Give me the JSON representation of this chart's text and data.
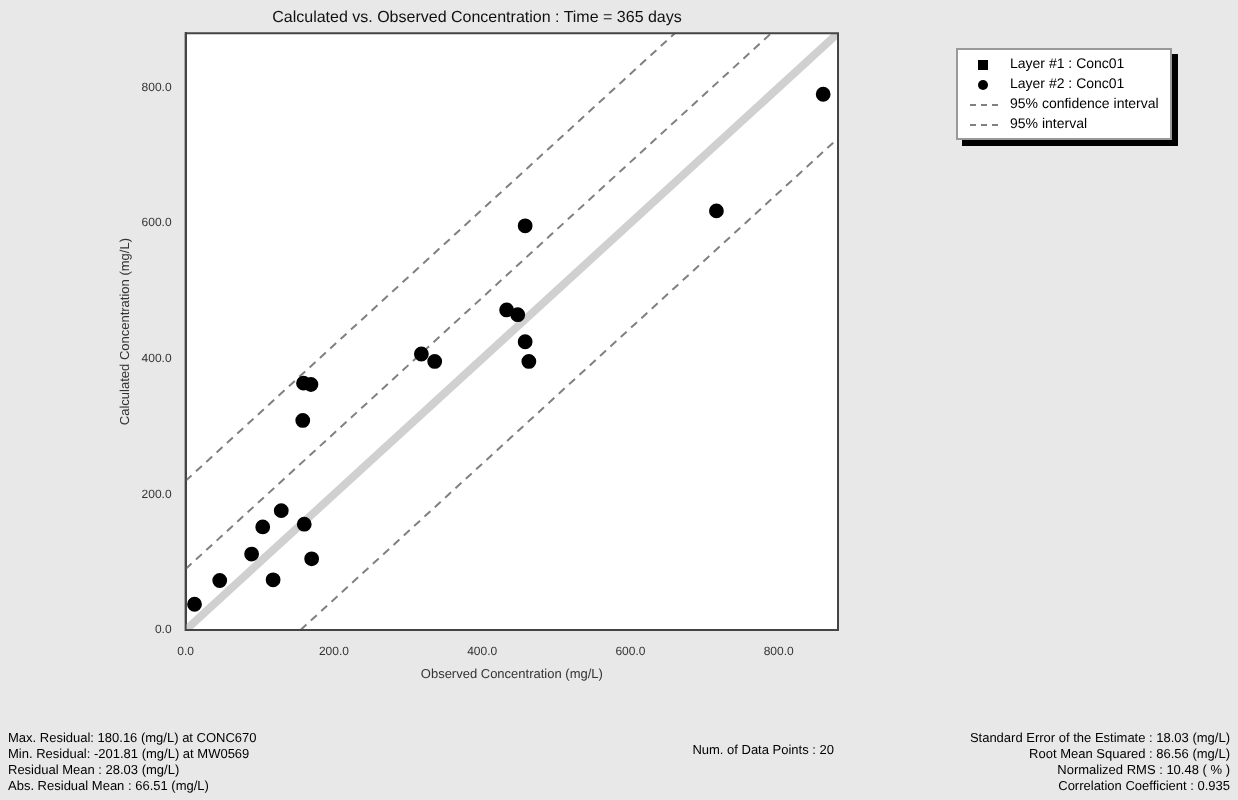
{
  "chart_data": {
    "type": "scatter",
    "title": "Calculated vs. Observed Concentration : Time = 365 days",
    "xlabel": "Observed Concentration (mg/L)",
    "ylabel": "Calculated Concentration (mg/L)",
    "xlim": [
      0,
      880
    ],
    "ylim": [
      0,
      880
    ],
    "xticks": [
      {
        "value": 0,
        "label": "0.0"
      },
      {
        "value": 200,
        "label": "200.0"
      },
      {
        "value": 400,
        "label": "400.0"
      },
      {
        "value": 600,
        "label": "600.0"
      },
      {
        "value": 800,
        "label": "800.0"
      }
    ],
    "yticks": [
      {
        "value": 0,
        "label": "0.0"
      },
      {
        "value": 200,
        "label": "200.0"
      },
      {
        "value": 400,
        "label": "400.0"
      },
      {
        "value": 600,
        "label": "600.0"
      },
      {
        "value": 800,
        "label": "800.0"
      }
    ],
    "grid": false,
    "legend": "right",
    "series": [
      {
        "name": "Layer #1 : Conc01",
        "marker": "square",
        "color": "#000000"
      },
      {
        "name": "Layer #2 : Conc01",
        "marker": "circle",
        "color": "#000000",
        "x": [
          12,
          46,
          89,
          104,
          118,
          129,
          160,
          170,
          158,
          159,
          169,
          318,
          336,
          433,
          448,
          458,
          463,
          458,
          716,
          860
        ],
        "values": [
          38,
          73,
          112,
          152,
          74,
          176,
          156,
          105,
          309,
          364,
          362,
          407,
          396,
          472,
          465,
          425,
          396,
          596,
          618,
          790
        ]
      },
      {
        "type": "line",
        "color": "#d0d0d0",
        "line_style": "solid",
        "x": [
          0,
          880
        ],
        "values": [
          0,
          880
        ]
      },
      {
        "name": "95% confidence interval",
        "type": "line",
        "color": "#808080",
        "line_style": "dashed",
        "x": [
          0,
          790
        ],
        "values": [
          90,
          880
        ]
      },
      {
        "name": "95% interval",
        "type": "line",
        "color": "#808080",
        "line_style": "dashed",
        "x": [
          0,
          660
        ],
        "values": [
          220,
          880
        ]
      },
      {
        "type": "line",
        "color": "#808080",
        "line_style": "dashed",
        "x": [
          155,
          880
        ],
        "values": [
          0,
          725
        ]
      }
    ],
    "annotations": [
      "Num. of Data Points : 20",
      "Max. Residual: 180.16 (mg/L) at CONC670",
      "Min. Residual: -201.81 (mg/L) at MW0569",
      "Residual Mean : 28.03 (mg/L)",
      "Abs. Residual Mean : 66.51 (mg/L)",
      "Standard Error of the Estimate : 18.03 (mg/L)",
      "Root Mean Squared : 86.56 (mg/L)",
      "Normalized RMS : 10.48 ( % )",
      "Correlation Coefficient : 0.935"
    ]
  }
}
